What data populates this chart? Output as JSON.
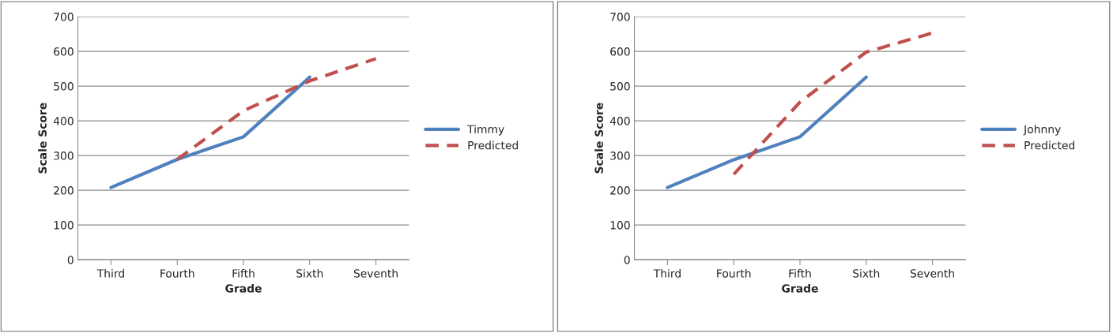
{
  "chart_data": [
    {
      "type": "line",
      "xlabel": "Grade",
      "ylabel": "Scale Score",
      "categories": [
        "Third",
        "Fourth",
        "Fifth",
        "Sixth",
        "Seventh"
      ],
      "ylim": [
        0,
        700
      ],
      "yticks": [
        0,
        100,
        200,
        300,
        400,
        500,
        600,
        700
      ],
      "grid": "y",
      "legend": "right",
      "marker": "none",
      "series": [
        {
          "name": "Timmy",
          "color": "#4f81bd",
          "line_style": "solid",
          "values": [
            208,
            289,
            354,
            526,
            null
          ]
        },
        {
          "name": "Predicted",
          "color": "#c0504d",
          "line_style": "dashed",
          "values": [
            null,
            289,
            429,
            515,
            579
          ]
        }
      ]
    },
    {
      "type": "line",
      "xlabel": "Grade",
      "ylabel": "Scale Score",
      "categories": [
        "Third",
        "Fourth",
        "Fifth",
        "Sixth",
        "Seventh"
      ],
      "ylim": [
        0,
        700
      ],
      "yticks": [
        0,
        100,
        200,
        300,
        400,
        500,
        600,
        700
      ],
      "grid": "y",
      "legend": "right",
      "marker": "none",
      "series": [
        {
          "name": "Johnny",
          "color": "#4f81bd",
          "line_style": "solid",
          "values": [
            208,
            288,
            354,
            526,
            null
          ]
        },
        {
          "name": "Predicted",
          "color": "#c0504d",
          "line_style": "dashed",
          "values": [
            null,
            246,
            454,
            598,
            653
          ]
        }
      ]
    }
  ]
}
